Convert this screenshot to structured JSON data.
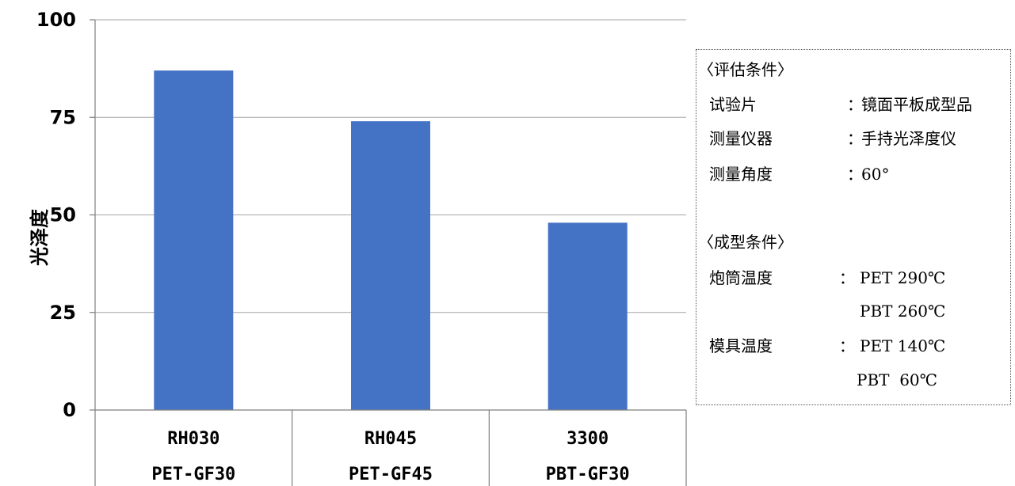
{
  "chart_data": {
    "type": "bar",
    "ylabel": "光泽度",
    "ylim": [
      0,
      100
    ],
    "yticks": [
      0,
      25,
      50,
      75,
      100
    ],
    "grid": true,
    "categories": [
      {
        "name": "RH030",
        "material": "PET-GF30"
      },
      {
        "name": "RH045",
        "material": "PET-GF45"
      },
      {
        "name": "3300",
        "material": "PBT-GF30"
      }
    ],
    "values": [
      87,
      74,
      48
    ],
    "bar_color": "#4472c4"
  },
  "conditions": {
    "eval_title": "〈评估条件〉",
    "specimen_key": "试验片",
    "specimen_val": "镜面平板成型品",
    "instrument_key": "测量仪器",
    "instrument_val": "手持光泽度仪",
    "angle_key": "测量角度",
    "angle_val": "60°",
    "mold_title": "〈成型条件〉",
    "barrel_key": "炮筒温度",
    "barrel_val_pet": "PET 290℃",
    "barrel_val_pbt": "PBT 260℃",
    "mold_temp_key": "模具温度",
    "mold_temp_val_pet": "PET 140℃",
    "mold_temp_val_pbt": "PBT  60℃",
    "colon": "："
  }
}
